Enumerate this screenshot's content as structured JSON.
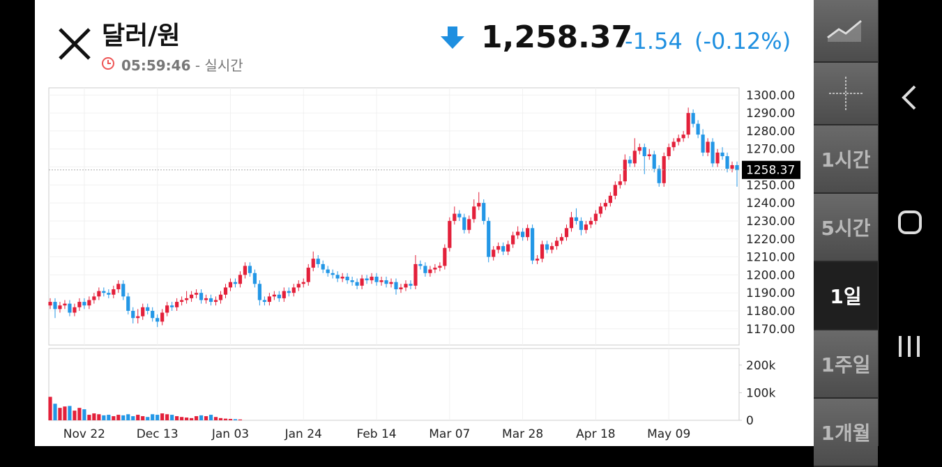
{
  "header": {
    "title": "달러/원",
    "time": "05:59:46",
    "status": "- 실시간",
    "price": "1,258.37",
    "change": "-1.54",
    "change_percent": "(-0.12%)"
  },
  "sidebar": {
    "intervals": [
      "1시간",
      "5시간",
      "1일",
      "1주일",
      "1개월"
    ],
    "selected": 2
  },
  "chart_data": {
    "type": "candlestick",
    "categories": [
      null,
      null,
      null,
      null,
      null,
      null,
      null,
      "Nov 22",
      null,
      null,
      null,
      null,
      null,
      null,
      null,
      null,
      null,
      null,
      null,
      null,
      null,
      null,
      "Dec 13",
      null,
      null,
      null,
      null,
      null,
      null,
      null,
      null,
      null,
      null,
      null,
      null,
      null,
      null,
      "Jan 03",
      null,
      null,
      null,
      null,
      null,
      null,
      null,
      null,
      null,
      null,
      null,
      null,
      null,
      null,
      "Jan 24",
      null,
      null,
      null,
      null,
      null,
      null,
      null,
      null,
      null,
      null,
      null,
      null,
      null,
      null,
      "Feb 14",
      null,
      null,
      null,
      null,
      null,
      null,
      null,
      null,
      null,
      null,
      null,
      null,
      null,
      null,
      "Mar 07",
      null,
      null,
      null,
      null,
      null,
      null,
      null,
      null,
      null,
      null,
      null,
      null,
      null,
      null,
      "Mar 28",
      null,
      null,
      null,
      null,
      null,
      null,
      null,
      null,
      null,
      null,
      null,
      null,
      null,
      null,
      "Apr 18",
      null,
      null,
      null,
      null,
      null,
      null,
      null,
      null,
      null,
      null,
      null,
      null,
      null,
      null,
      "May 09",
      null,
      null,
      null,
      null,
      null,
      null,
      null,
      null,
      null,
      null,
      null,
      null,
      null,
      null
    ],
    "open": [
      1183,
      1185,
      1181,
      1183,
      1184,
      1179,
      1182,
      1185,
      1183,
      1186,
      1188,
      1191,
      1190,
      1189,
      1192,
      1195,
      1188,
      1180,
      1176,
      1177,
      1182,
      1180,
      1176,
      1174,
      1179,
      1183,
      1182,
      1185,
      1186,
      1187,
      1189,
      1190,
      1186,
      1187,
      1185,
      1186,
      1189,
      1193,
      1196,
      1195,
      1200,
      1205,
      1201,
      1195,
      1186,
      1185,
      1188,
      1189,
      1187,
      1191,
      1190,
      1193,
      1195,
      1196,
      1204,
      1209,
      1206,
      1203,
      1201,
      1200,
      1198,
      1199,
      1197,
      1196,
      1194,
      1198,
      1197,
      1199,
      1196,
      1197,
      1195,
      1196,
      1192,
      1193,
      1195,
      1194,
      1206,
      1205,
      1201,
      1203,
      1204,
      1205,
      1215,
      1230,
      1234,
      1232,
      1225,
      1231,
      1238,
      1240,
      1230,
      1210,
      1214,
      1216,
      1213,
      1217,
      1222,
      1224,
      1221,
      1226,
      1208,
      1209,
      1217,
      1214,
      1216,
      1219,
      1221,
      1226,
      1232,
      1230,
      1225,
      1228,
      1230,
      1234,
      1238,
      1240,
      1244,
      1250,
      1252,
      1264,
      1262,
      1269,
      1271,
      1266,
      1267,
      1259,
      1251,
      1266,
      1271,
      1274,
      1276,
      1278,
      1290,
      1284,
      1278,
      1268,
      1274,
      1262,
      1268,
      1266,
      1259,
      1261
    ],
    "high": [
      1187,
      1187,
      1185,
      1186,
      1186,
      1184,
      1187,
      1187,
      1188,
      1190,
      1193,
      1193,
      1192,
      1194,
      1197,
      1197,
      1190,
      1182,
      1181,
      1184,
      1184,
      1182,
      1178,
      1181,
      1185,
      1185,
      1187,
      1188,
      1191,
      1191,
      1192,
      1192,
      1189,
      1189,
      1188,
      1191,
      1195,
      1198,
      1198,
      1202,
      1207,
      1207,
      1203,
      1197,
      1188,
      1190,
      1191,
      1191,
      1193,
      1193,
      1195,
      1197,
      1198,
      1206,
      1213,
      1211,
      1208,
      1205,
      1203,
      1202,
      1201,
      1201,
      1199,
      1198,
      1200,
      1200,
      1201,
      1201,
      1199,
      1199,
      1198,
      1198,
      1195,
      1197,
      1197,
      1211,
      1208,
      1207,
      1205,
      1206,
      1207,
      1217,
      1232,
      1238,
      1236,
      1234,
      1233,
      1242,
      1246,
      1242,
      1232,
      1216,
      1218,
      1218,
      1219,
      1224,
      1227,
      1226,
      1228,
      1228,
      1211,
      1219,
      1219,
      1218,
      1221,
      1223,
      1228,
      1235,
      1237,
      1232,
      1230,
      1232,
      1236,
      1240,
      1242,
      1246,
      1252,
      1256,
      1267,
      1266,
      1276,
      1273,
      1273,
      1270,
      1269,
      1261,
      1268,
      1273,
      1276,
      1278,
      1280,
      1293,
      1292,
      1286,
      1281,
      1276,
      1276,
      1270,
      1271,
      1268,
      1263,
      1263
    ],
    "low": [
      1181,
      1176,
      1179,
      1181,
      1177,
      1177,
      1180,
      1181,
      1181,
      1184,
      1186,
      1188,
      1187,
      1187,
      1190,
      1186,
      1178,
      1173,
      1173,
      1175,
      1178,
      1174,
      1171,
      1172,
      1177,
      1180,
      1180,
      1183,
      1184,
      1185,
      1187,
      1184,
      1184,
      1183,
      1183,
      1184,
      1187,
      1191,
      1193,
      1193,
      1198,
      1199,
      1193,
      1183,
      1183,
      1183,
      1186,
      1185,
      1185,
      1188,
      1188,
      1191,
      1193,
      1194,
      1202,
      1204,
      1201,
      1199,
      1198,
      1196,
      1196,
      1195,
      1194,
      1192,
      1192,
      1195,
      1195,
      1194,
      1194,
      1193,
      1193,
      1189,
      1190,
      1191,
      1192,
      1192,
      1203,
      1199,
      1199,
      1201,
      1202,
      1203,
      1213,
      1228,
      1230,
      1223,
      1223,
      1229,
      1236,
      1228,
      1207,
      1208,
      1212,
      1211,
      1211,
      1215,
      1220,
      1219,
      1219,
      1206,
      1206,
      1207,
      1212,
      1212,
      1214,
      1217,
      1219,
      1224,
      1228,
      1222,
      1223,
      1226,
      1228,
      1232,
      1236,
      1238,
      1242,
      1248,
      1250,
      1260,
      1260,
      1267,
      1256,
      1264,
      1257,
      1249,
      1249,
      1264,
      1269,
      1272,
      1274,
      1276,
      1282,
      1276,
      1266,
      1266,
      1260,
      1260,
      1264,
      1257,
      1257,
      1249
    ],
    "close": [
      1185,
      1181,
      1183,
      1184,
      1179,
      1182,
      1185,
      1183,
      1186,
      1188,
      1191,
      1190,
      1189,
      1192,
      1195,
      1188,
      1180,
      1176,
      1177,
      1182,
      1180,
      1176,
      1174,
      1179,
      1183,
      1182,
      1185,
      1186,
      1187,
      1189,
      1190,
      1186,
      1187,
      1185,
      1186,
      1189,
      1193,
      1196,
      1195,
      1200,
      1205,
      1201,
      1195,
      1186,
      1185,
      1188,
      1189,
      1187,
      1191,
      1190,
      1193,
      1195,
      1196,
      1204,
      1209,
      1206,
      1203,
      1201,
      1200,
      1198,
      1199,
      1197,
      1196,
      1194,
      1198,
      1197,
      1199,
      1196,
      1197,
      1195,
      1196,
      1192,
      1193,
      1195,
      1194,
      1206,
      1205,
      1201,
      1203,
      1204,
      1205,
      1215,
      1230,
      1234,
      1232,
      1225,
      1231,
      1238,
      1240,
      1230,
      1210,
      1214,
      1216,
      1213,
      1217,
      1222,
      1224,
      1221,
      1226,
      1208,
      1209,
      1217,
      1214,
      1216,
      1219,
      1221,
      1226,
      1232,
      1230,
      1225,
      1228,
      1230,
      1234,
      1238,
      1240,
      1244,
      1250,
      1252,
      1264,
      1262,
      1269,
      1271,
      1266,
      1267,
      1259,
      1251,
      1266,
      1271,
      1274,
      1276,
      1278,
      1290,
      1284,
      1278,
      1268,
      1274,
      1262,
      1268,
      1266,
      1259,
      1261,
      1258.37
    ],
    "volume": [
      85000,
      60000,
      45000,
      50000,
      52000,
      35000,
      45000,
      40000,
      20000,
      25000,
      22000,
      18000,
      20000,
      15000,
      20000,
      18000,
      22000,
      15000,
      20000,
      15000,
      12000,
      22000,
      20000,
      25000,
      22000,
      20000,
      15000,
      12000,
      10000,
      8000,
      15000,
      18000,
      15000,
      20000,
      12000,
      8000,
      6000,
      5000,
      4000,
      3000,
      null,
      null,
      null,
      null,
      null,
      null,
      null,
      null,
      null,
      null,
      null,
      null,
      null,
      null,
      null,
      null,
      null,
      null,
      null,
      null,
      null,
      null,
      null,
      null,
      null,
      null,
      null,
      null,
      null,
      null,
      null,
      null,
      null,
      null,
      null,
      null,
      null,
      null,
      null,
      null,
      null,
      null,
      null,
      null,
      null,
      null,
      null,
      null,
      null,
      null,
      null,
      null,
      null,
      null,
      null,
      null,
      null,
      null,
      null,
      null,
      null,
      null,
      null,
      null,
      null,
      null,
      null,
      null,
      null,
      null,
      null,
      null,
      null,
      null,
      null,
      null,
      null,
      null,
      null,
      null,
      null,
      null,
      null,
      null,
      null,
      null,
      null,
      null,
      null,
      null,
      null,
      null,
      null,
      null,
      null,
      null,
      null,
      null,
      null,
      null,
      null,
      null
    ],
    "up_color": "#e3203a",
    "down_color": "#2397e6",
    "ylim": [
      1161,
      1304
    ],
    "yticks": [
      {
        "value": 1170,
        "label": "1170.00"
      },
      {
        "value": 1180,
        "label": "1180.00"
      },
      {
        "value": 1190,
        "label": "1190.00"
      },
      {
        "value": 1200,
        "label": "1200.00"
      },
      {
        "value": 1210,
        "label": "1210.00"
      },
      {
        "value": 1220,
        "label": "1220.00"
      },
      {
        "value": 1230,
        "label": "1230.00"
      },
      {
        "value": 1240,
        "label": "1240.00"
      },
      {
        "value": 1250,
        "label": "1250.00"
      },
      {
        "value": 1260,
        "label": "1260.00"
      },
      {
        "value": 1270,
        "label": "1270.00"
      },
      {
        "value": 1280,
        "label": "1280.00"
      },
      {
        "value": 1290,
        "label": "1290.00"
      },
      {
        "value": 1300,
        "label": "1300.00"
      }
    ],
    "volume_ylim": [
      0,
      260000
    ],
    "volume_yticks": [
      0,
      {
        "value": 100000,
        "label": "100k"
      },
      {
        "value": 200000,
        "label": "200k"
      }
    ],
    "last_price": 1258.37,
    "grid": true
  }
}
